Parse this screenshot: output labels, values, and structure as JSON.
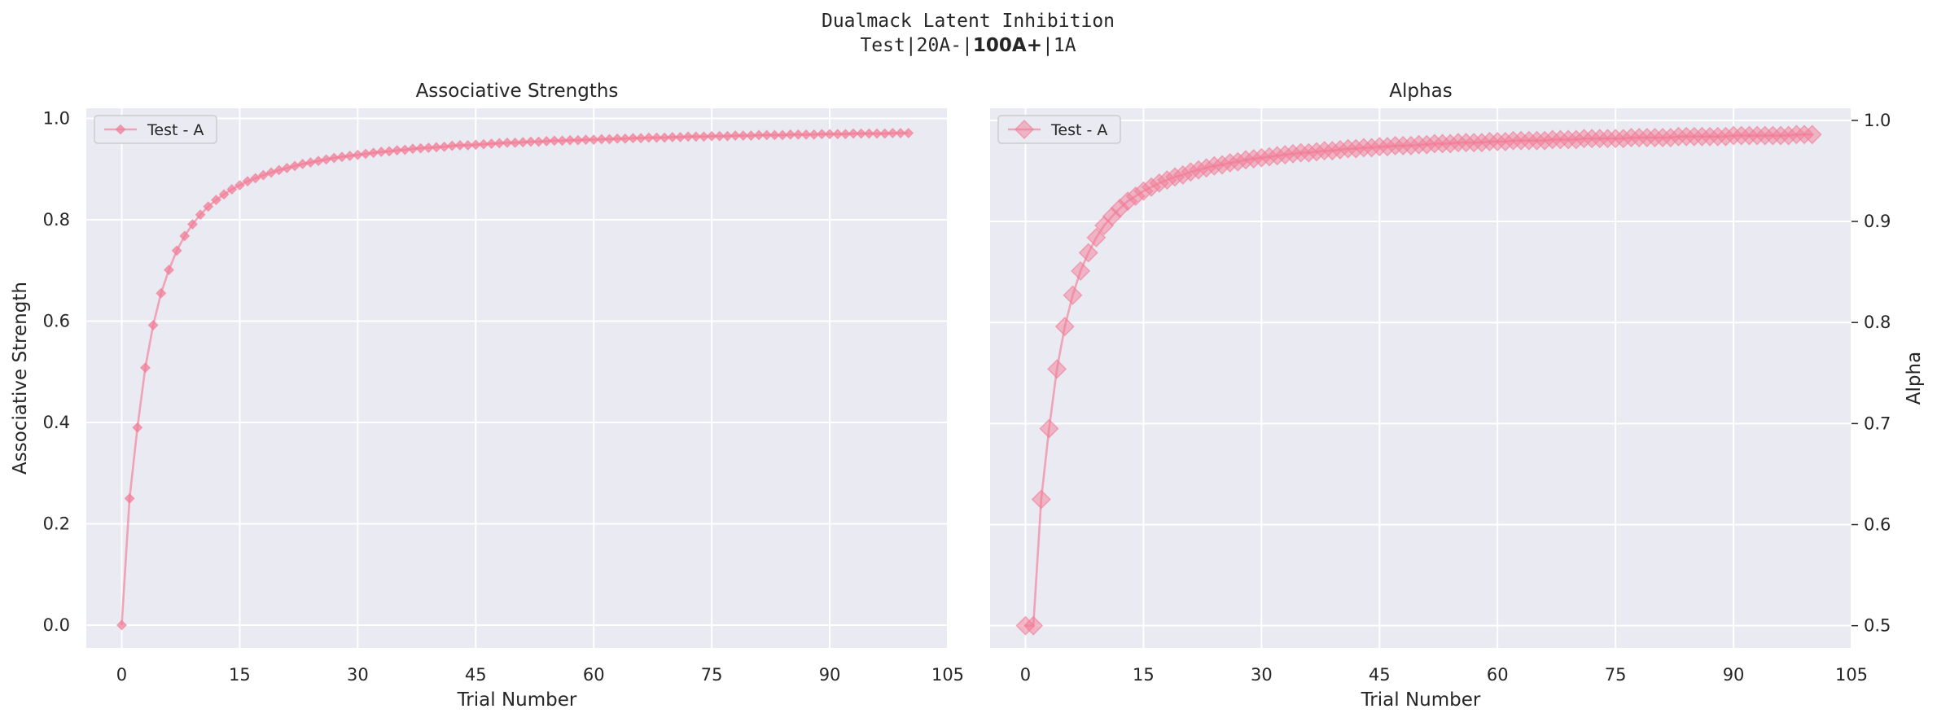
{
  "figure": {
    "suptitle_line1": "Dualmack Latent Inhibition",
    "suptitle_line2_prefix": "Test|20A-|",
    "suptitle_line2_bold": "100A+",
    "suptitle_line2_suffix": "|1A"
  },
  "colors": {
    "background": "#eaeaf2",
    "grid": "#ffffff",
    "series": "#f27b95",
    "text": "#262626"
  },
  "chart_data": [
    {
      "type": "line",
      "title": "Associative Strengths",
      "xlabel": "Trial Number",
      "ylabel": "Associative Strength",
      "xlim": [
        -4.5,
        105
      ],
      "ylim": [
        -0.045,
        1.02
      ],
      "xticks": [
        0,
        15,
        30,
        45,
        60,
        75,
        90,
        105
      ],
      "yticks": [
        0.0,
        0.2,
        0.4,
        0.6,
        0.8,
        1.0
      ],
      "ytick_labels": [
        "0.0",
        "0.2",
        "0.4",
        "0.6",
        "0.8",
        "1.0"
      ],
      "y_axis_side": "left",
      "grid": true,
      "legend_position": "top-left",
      "marker": "diamond",
      "series": [
        {
          "name": "Test - A",
          "x": [
            0,
            1,
            2,
            3,
            4,
            5,
            6,
            7,
            8,
            9,
            10,
            11,
            12,
            13,
            14,
            15,
            16,
            17,
            18,
            19,
            20,
            21,
            22,
            23,
            24,
            25,
            26,
            27,
            28,
            29,
            30,
            31,
            32,
            33,
            34,
            35,
            36,
            37,
            38,
            39,
            40,
            41,
            42,
            43,
            44,
            45,
            46,
            47,
            48,
            49,
            50,
            51,
            52,
            53,
            54,
            55,
            56,
            57,
            58,
            59,
            60,
            61,
            62,
            63,
            64,
            65,
            66,
            67,
            68,
            69,
            70,
            71,
            72,
            73,
            74,
            75,
            76,
            77,
            78,
            79,
            80,
            81,
            82,
            83,
            84,
            85,
            86,
            87,
            88,
            89,
            90,
            91,
            92,
            93,
            94,
            95,
            96,
            97,
            98,
            99,
            100
          ],
          "values": [
            0.0,
            0.25,
            0.39,
            0.508,
            0.592,
            0.655,
            0.701,
            0.739,
            0.768,
            0.791,
            0.81,
            0.826,
            0.839,
            0.85,
            0.86,
            0.868,
            0.876,
            0.882,
            0.888,
            0.893,
            0.898,
            0.902,
            0.906,
            0.91,
            0.913,
            0.916,
            0.919,
            0.922,
            0.924,
            0.926,
            0.928,
            0.93,
            0.932,
            0.934,
            0.935,
            0.937,
            0.938,
            0.94,
            0.941,
            0.942,
            0.943,
            0.944,
            0.946,
            0.947,
            0.947,
            0.948,
            0.949,
            0.95,
            0.951,
            0.952,
            0.952,
            0.953,
            0.954,
            0.954,
            0.955,
            0.956,
            0.956,
            0.957,
            0.957,
            0.958,
            0.958,
            0.959,
            0.959,
            0.96,
            0.96,
            0.961,
            0.961,
            0.962,
            0.962,
            0.962,
            0.963,
            0.963,
            0.964,
            0.964,
            0.964,
            0.965,
            0.965,
            0.965,
            0.966,
            0.966,
            0.966,
            0.967,
            0.967,
            0.967,
            0.967,
            0.968,
            0.968,
            0.968,
            0.968,
            0.969,
            0.969,
            0.969,
            0.969,
            0.97,
            0.97,
            0.97,
            0.97,
            0.97,
            0.971,
            0.971,
            0.971
          ]
        }
      ]
    },
    {
      "type": "line",
      "title": "Alphas",
      "xlabel": "Trial Number",
      "ylabel": "Alpha",
      "xlim": [
        -4.5,
        105
      ],
      "ylim": [
        0.478,
        1.012
      ],
      "xticks": [
        0,
        15,
        30,
        45,
        60,
        75,
        90,
        105
      ],
      "yticks": [
        0.5,
        0.6,
        0.7,
        0.8,
        0.9,
        1.0
      ],
      "ytick_labels": [
        "0.5",
        "0.6",
        "0.7",
        "0.8",
        "0.9",
        "1.0"
      ],
      "y_axis_side": "right",
      "grid": true,
      "legend_position": "top-left",
      "marker": "diamond-large",
      "series": [
        {
          "name": "Test - A",
          "x": [
            0,
            1,
            2,
            3,
            4,
            5,
            6,
            7,
            8,
            9,
            10,
            11,
            12,
            13,
            14,
            15,
            16,
            17,
            18,
            19,
            20,
            21,
            22,
            23,
            24,
            25,
            26,
            27,
            28,
            29,
            30,
            31,
            32,
            33,
            34,
            35,
            36,
            37,
            38,
            39,
            40,
            41,
            42,
            43,
            44,
            45,
            46,
            47,
            48,
            49,
            50,
            51,
            52,
            53,
            54,
            55,
            56,
            57,
            58,
            59,
            60,
            61,
            62,
            63,
            64,
            65,
            66,
            67,
            68,
            69,
            70,
            71,
            72,
            73,
            74,
            75,
            76,
            77,
            78,
            79,
            80,
            81,
            82,
            83,
            84,
            85,
            86,
            87,
            88,
            89,
            90,
            91,
            92,
            93,
            94,
            95,
            96,
            97,
            98,
            99,
            100
          ],
          "values": [
            0.5,
            0.5,
            0.625,
            0.695,
            0.754,
            0.796,
            0.827,
            0.851,
            0.869,
            0.884,
            0.896,
            0.905,
            0.913,
            0.92,
            0.925,
            0.93,
            0.934,
            0.938,
            0.941,
            0.944,
            0.946,
            0.949,
            0.951,
            0.953,
            0.955,
            0.956,
            0.958,
            0.959,
            0.961,
            0.962,
            0.963,
            0.964,
            0.965,
            0.966,
            0.967,
            0.968,
            0.968,
            0.969,
            0.97,
            0.97,
            0.971,
            0.972,
            0.972,
            0.973,
            0.973,
            0.974,
            0.974,
            0.975,
            0.975,
            0.975,
            0.976,
            0.976,
            0.977,
            0.977,
            0.977,
            0.978,
            0.978,
            0.978,
            0.978,
            0.979,
            0.979,
            0.979,
            0.98,
            0.98,
            0.98,
            0.98,
            0.98,
            0.981,
            0.981,
            0.981,
            0.981,
            0.982,
            0.982,
            0.982,
            0.982,
            0.982,
            0.982,
            0.983,
            0.983,
            0.983,
            0.983,
            0.983,
            0.983,
            0.984,
            0.984,
            0.984,
            0.984,
            0.984,
            0.984,
            0.984,
            0.985,
            0.985,
            0.985,
            0.985,
            0.985,
            0.985,
            0.985,
            0.985,
            0.986,
            0.986,
            0.986
          ]
        }
      ]
    }
  ]
}
